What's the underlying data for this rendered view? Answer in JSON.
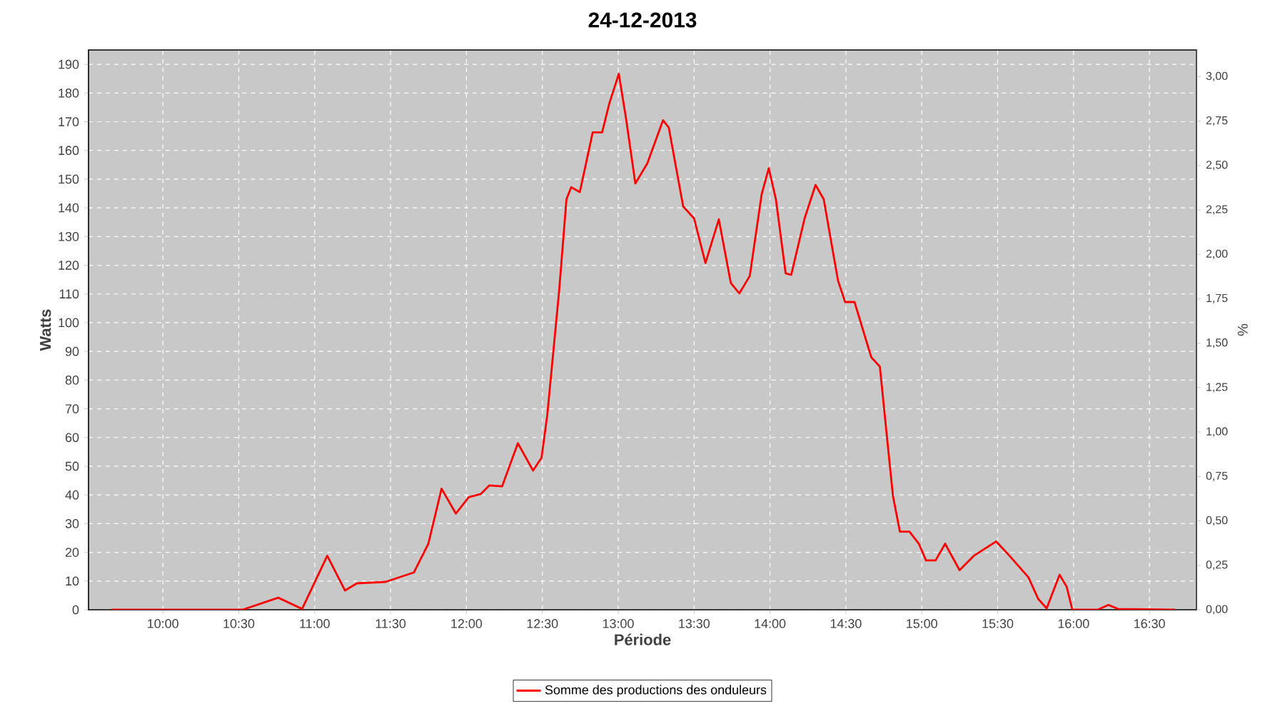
{
  "chart_data": {
    "type": "line",
    "title": "24-12-2013",
    "xlabel": "Période",
    "ylabel": "Watts",
    "y2label": "%",
    "x": [
      9.663,
      10.524,
      10.76,
      10.917,
      11.083,
      11.2,
      11.278,
      11.466,
      11.654,
      11.749,
      11.836,
      11.93,
      12.015,
      12.094,
      12.15,
      12.235,
      12.339,
      12.439,
      12.495,
      12.533,
      12.611,
      12.659,
      12.69,
      12.747,
      12.832,
      12.894,
      12.941,
      13.004,
      13.051,
      13.113,
      13.192,
      13.295,
      13.333,
      13.428,
      13.5,
      13.575,
      13.663,
      13.742,
      13.798,
      13.867,
      13.945,
      13.992,
      14.039,
      14.103,
      14.14,
      14.228,
      14.3,
      14.354,
      14.448,
      14.495,
      14.557,
      14.667,
      14.724,
      14.762,
      14.81,
      14.856,
      14.919,
      14.981,
      15.028,
      15.091,
      15.154,
      15.249,
      15.343,
      15.49,
      15.578,
      15.703,
      15.767,
      15.823,
      15.908,
      15.955,
      15.992,
      16.158,
      16.23,
      16.293,
      16.67
    ],
    "series": [
      {
        "name": "Somme des productions des onduleurs",
        "color": "#ff0000",
        "values": [
          0,
          0,
          4.2,
          0.3,
          18.8,
          6.7,
          9.2,
          9.7,
          13,
          23,
          42.2,
          33.5,
          39.2,
          40.3,
          43.3,
          43,
          58,
          48.5,
          53,
          68,
          111.3,
          143,
          147.2,
          145.5,
          166.3,
          166.3,
          176.3,
          186.7,
          171.3,
          148.5,
          155.5,
          170.5,
          168,
          140.5,
          136.3,
          120.8,
          136,
          113.8,
          110.2,
          116.3,
          144.7,
          153.8,
          143,
          117.2,
          116.7,
          136.3,
          148,
          143,
          114.7,
          107.2,
          107.2,
          88,
          84.7,
          64.7,
          39.7,
          27.2,
          27.2,
          23,
          17.2,
          17.2,
          23,
          13.8,
          18.8,
          23.8,
          18.8,
          11.3,
          3.8,
          0.5,
          12.2,
          8,
          0,
          0,
          1.7,
          0.3,
          0
        ]
      }
    ],
    "xlim": [
      9.51,
      16.81
    ],
    "xticks": [
      {
        "value": 10,
        "label": "10:00"
      },
      {
        "value": 10.5,
        "label": "10:30"
      },
      {
        "value": 11,
        "label": "11:00"
      },
      {
        "value": 11.5,
        "label": "11:30"
      },
      {
        "value": 12,
        "label": "12:00"
      },
      {
        "value": 12.5,
        "label": "12:30"
      },
      {
        "value": 13,
        "label": "13:00"
      },
      {
        "value": 13.5,
        "label": "13:30"
      },
      {
        "value": 14,
        "label": "14:00"
      },
      {
        "value": 14.5,
        "label": "14:30"
      },
      {
        "value": 15,
        "label": "15:00"
      },
      {
        "value": 15.5,
        "label": "15:30"
      },
      {
        "value": 16,
        "label": "16:00"
      },
      {
        "value": 16.5,
        "label": "16:30"
      }
    ],
    "ylim": [
      0,
      195
    ],
    "yticks": [
      0,
      10,
      20,
      30,
      40,
      50,
      60,
      70,
      80,
      90,
      100,
      110,
      120,
      130,
      140,
      150,
      160,
      170,
      180,
      190
    ],
    "y2lim": [
      0,
      3.15
    ],
    "y2ticks": [
      {
        "value": 0,
        "label": "0,00"
      },
      {
        "value": 0.25,
        "label": "0,25"
      },
      {
        "value": 0.5,
        "label": "0,50"
      },
      {
        "value": 0.75,
        "label": "0,75"
      },
      {
        "value": 1,
        "label": "1,00"
      },
      {
        "value": 1.25,
        "label": "1,25"
      },
      {
        "value": 1.5,
        "label": "1,50"
      },
      {
        "value": 1.75,
        "label": "1,75"
      },
      {
        "value": 2,
        "label": "2,00"
      },
      {
        "value": 2.25,
        "label": "2,25"
      },
      {
        "value": 2.5,
        "label": "2,50"
      },
      {
        "value": 2.75,
        "label": "2,75"
      },
      {
        "value": 3,
        "label": "3,00"
      }
    ],
    "grid": true,
    "legend": "bottom",
    "marker": "none",
    "line_style": "solid"
  }
}
